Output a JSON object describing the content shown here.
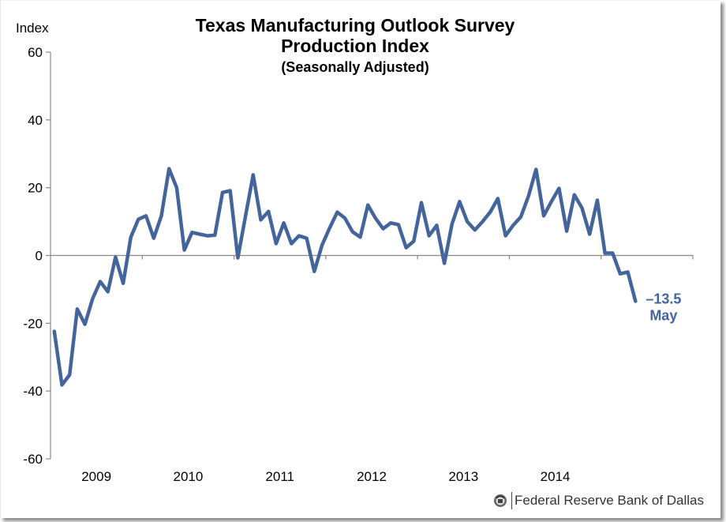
{
  "header": {
    "title_line1": "Texas Manufacturing Outlook Survey",
    "title_line2": "Production Index",
    "title_line3": "(Seasonally Adjusted)"
  },
  "credit": {
    "text": "Federal Reserve Bank of Dallas",
    "logo_icon": "federal-reserve-seal-icon"
  },
  "colors": {
    "line": "#43659b",
    "axis": "#888888",
    "text": "#000000"
  },
  "chart_data": {
    "type": "line",
    "title": "Texas Manufacturing Outlook Survey Production Index (Seasonally Adjusted)",
    "xlabel": "",
    "ylabel": "Index",
    "ylim": [
      -60,
      60
    ],
    "yticks": [
      60,
      40,
      20,
      0,
      -20,
      -40,
      -60
    ],
    "ytick_labels": [
      "60",
      "40",
      "20",
      "0",
      "-20",
      "-40",
      "-60"
    ],
    "x_categories": [
      "2009",
      "2010",
      "2011",
      "2012",
      "2013",
      "2014"
    ],
    "x_range_years": [
      2009,
      2015
    ],
    "frequency": "monthly",
    "start": "Jan 2009",
    "end": "May 2015",
    "grid": false,
    "legend": "none",
    "series": [
      {
        "name": "Production Index",
        "values": [
          -22.4,
          -38.2,
          -35.2,
          -15.8,
          -20.3,
          -12.8,
          -7.7,
          -10.7,
          -0.5,
          -8.2,
          5.4,
          10.7,
          11.7,
          5.1,
          11.7,
          25.6,
          20.0,
          1.6,
          6.8,
          6.3,
          5.8,
          6.0,
          18.6,
          19.1,
          -0.7,
          11.6,
          23.8,
          10.5,
          13.0,
          3.5,
          9.6,
          3.5,
          5.8,
          5.1,
          -4.7,
          3.0,
          8.1,
          12.8,
          11.0,
          7.0,
          5.4,
          14.9,
          11.0,
          7.9,
          9.6,
          9.1,
          2.3,
          4.2,
          15.6,
          5.8,
          8.9,
          -2.3,
          9.3,
          15.9,
          10.0,
          7.5,
          10.0,
          12.8,
          16.8,
          5.8,
          8.9,
          11.4,
          17.5,
          25.4,
          11.7,
          15.9,
          19.8,
          7.2,
          17.9,
          14.0,
          6.3,
          16.3,
          0.7,
          0.7,
          -5.4,
          -4.9,
          -13.5
        ]
      }
    ],
    "annotations": [
      {
        "text_value": "–13.5",
        "text_month": "May",
        "points_to": "last"
      }
    ]
  }
}
